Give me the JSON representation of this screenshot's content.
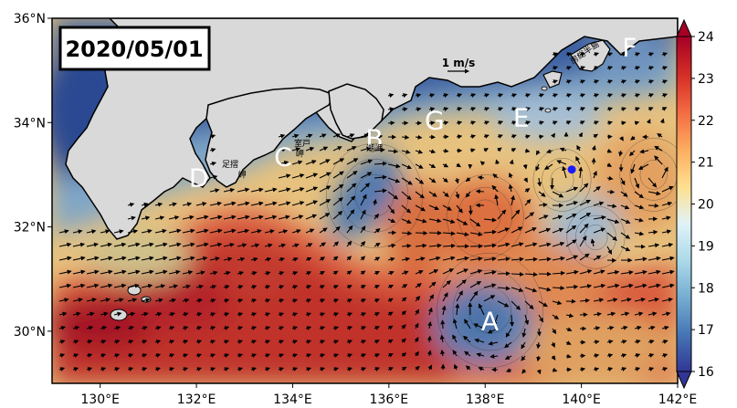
{
  "date_label": "2020/05/01",
  "scale_label": "1 m/s",
  "lon_ticks": [
    {
      "value": 130,
      "label": "130°E"
    },
    {
      "value": 132,
      "label": "132°E"
    },
    {
      "value": 134,
      "label": "134°E"
    },
    {
      "value": 136,
      "label": "136°E"
    },
    {
      "value": 138,
      "label": "138°E"
    },
    {
      "value": 140,
      "label": "140°E"
    },
    {
      "value": 142,
      "label": "142°E"
    }
  ],
  "lat_ticks": [
    {
      "value": 30,
      "label": "30°N"
    },
    {
      "value": 32,
      "label": "32°N"
    },
    {
      "value": 34,
      "label": "34°N"
    },
    {
      "value": 36,
      "label": "36°N"
    }
  ],
  "colorbar": {
    "min": 16,
    "max": 24,
    "ticks": [
      "16",
      "17",
      "18",
      "19",
      "20",
      "21",
      "22",
      "23",
      "24"
    ],
    "colors": [
      "#313695",
      "#4575b4",
      "#74add1",
      "#abd9e9",
      "#e0f3f8",
      "#fee090",
      "#fdae61",
      "#f46d43",
      "#d73027",
      "#a50026"
    ]
  },
  "regions": [
    {
      "letter": "A",
      "lon": 138.1,
      "lat": 30.2
    },
    {
      "letter": "B",
      "lon": 135.7,
      "lat": 33.7
    },
    {
      "letter": "C",
      "lon": 133.8,
      "lat": 33.35
    },
    {
      "letter": "D",
      "lon": 132.05,
      "lat": 32.95
    },
    {
      "letter": "E",
      "lon": 138.75,
      "lat": 34.1
    },
    {
      "letter": "F",
      "lon": 141.0,
      "lat": 35.45
    },
    {
      "letter": "G",
      "lon": 136.95,
      "lat": 34.05
    }
  ],
  "place_labels": [
    {
      "text": "室戸",
      "lon": 134.2,
      "lat": 33.55
    },
    {
      "text": "岬",
      "lon": 134.15,
      "lat": 33.35
    },
    {
      "text": "潮岬",
      "lon": 135.7,
      "lat": 33.45
    },
    {
      "text": "足摺",
      "lon": 132.7,
      "lat": 33.15
    },
    {
      "text": "岬",
      "lon": 132.95,
      "lat": 32.95
    },
    {
      "text": "房総半島",
      "lon": 140.1,
      "lat": 35.3
    }
  ],
  "marker": {
    "lon": 139.8,
    "lat": 33.1,
    "color": "#1a1aff"
  },
  "eddies": [
    {
      "lon": 138.1,
      "lat": 30.4,
      "r": 1.1,
      "type": "cold"
    },
    {
      "lon": 135.7,
      "lat": 32.6,
      "r": 1.0,
      "type": "cold"
    },
    {
      "lon": 138.0,
      "lat": 32.2,
      "r": 0.8,
      "type": "warm"
    },
    {
      "lon": 141.5,
      "lat": 33.0,
      "r": 0.7,
      "type": "warm"
    },
    {
      "lon": 140.3,
      "lat": 31.8,
      "r": 0.6,
      "type": "cold"
    },
    {
      "lon": 139.6,
      "lat": 32.9,
      "r": 0.6,
      "type": "warm"
    }
  ]
}
